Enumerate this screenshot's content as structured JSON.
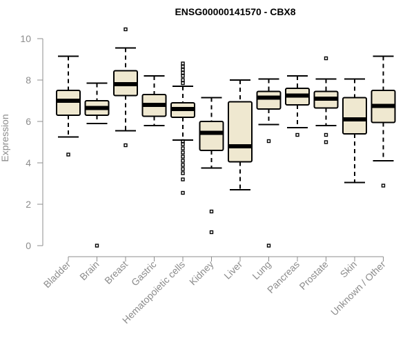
{
  "chart_data": {
    "type": "boxplot",
    "title": "ENSG00000141570 - CBX8",
    "xlabel": "",
    "ylabel": "Expression",
    "ylim": [
      0,
      10
    ],
    "yticks": [
      0,
      2,
      4,
      6,
      8,
      10
    ],
    "grid": false,
    "box_fill": "#efe8d0",
    "box_stroke": "#000000",
    "axis_color": "#8c8c8c",
    "categories": [
      "Bladder",
      "Brain",
      "Breast",
      "Gastric",
      "Hematopoietic cells",
      "Kidney",
      "Liver",
      "Lung",
      "Pancreas",
      "Prostate",
      "Skin",
      "Unknown / Other"
    ],
    "series": [
      {
        "category": "Bladder",
        "min": 5.25,
        "q1": 6.3,
        "median": 7.0,
        "q3": 7.5,
        "max": 9.15,
        "outliers": [
          4.4
        ]
      },
      {
        "category": "Brain",
        "min": 5.9,
        "q1": 6.3,
        "median": 6.65,
        "q3": 7.0,
        "max": 7.85,
        "outliers": [
          0.0
        ]
      },
      {
        "category": "Breast",
        "min": 5.55,
        "q1": 7.25,
        "median": 7.8,
        "q3": 8.45,
        "max": 9.55,
        "outliers": [
          4.85,
          10.45
        ]
      },
      {
        "category": "Gastric",
        "min": 5.8,
        "q1": 6.25,
        "median": 6.8,
        "q3": 7.3,
        "max": 8.2,
        "outliers": []
      },
      {
        "category": "Hematopoietic cells",
        "min": 5.1,
        "q1": 6.2,
        "median": 6.6,
        "q3": 6.9,
        "max": 7.7,
        "outliers": [
          2.55,
          3.2,
          3.5,
          3.7,
          3.9,
          4.1,
          4.3,
          4.5,
          4.7,
          4.9,
          5.05,
          7.85,
          8.0,
          8.2,
          8.35,
          8.5,
          8.65,
          8.8
        ]
      },
      {
        "category": "Kidney",
        "min": 3.75,
        "q1": 4.6,
        "median": 5.45,
        "q3": 6.0,
        "max": 7.15,
        "outliers": [
          0.65,
          1.65
        ]
      },
      {
        "category": "Liver",
        "min": 2.7,
        "q1": 4.05,
        "median": 4.8,
        "q3": 6.95,
        "max": 8.0,
        "outliers": []
      },
      {
        "category": "Lung",
        "min": 5.85,
        "q1": 6.6,
        "median": 7.15,
        "q3": 7.45,
        "max": 8.05,
        "outliers": [
          0.0,
          5.05
        ]
      },
      {
        "category": "Pancreas",
        "min": 5.7,
        "q1": 6.8,
        "median": 7.25,
        "q3": 7.6,
        "max": 8.2,
        "outliers": [
          5.35
        ]
      },
      {
        "category": "Prostate",
        "min": 5.8,
        "q1": 6.65,
        "median": 7.1,
        "q3": 7.45,
        "max": 8.05,
        "outliers": [
          5.0,
          5.35,
          9.05
        ]
      },
      {
        "category": "Skin",
        "min": 3.05,
        "q1": 5.4,
        "median": 6.1,
        "q3": 7.15,
        "max": 8.05,
        "outliers": []
      },
      {
        "category": "Unknown / Other",
        "min": 4.1,
        "q1": 5.95,
        "median": 6.75,
        "q3": 7.5,
        "max": 9.15,
        "outliers": [
          2.9
        ]
      }
    ]
  }
}
